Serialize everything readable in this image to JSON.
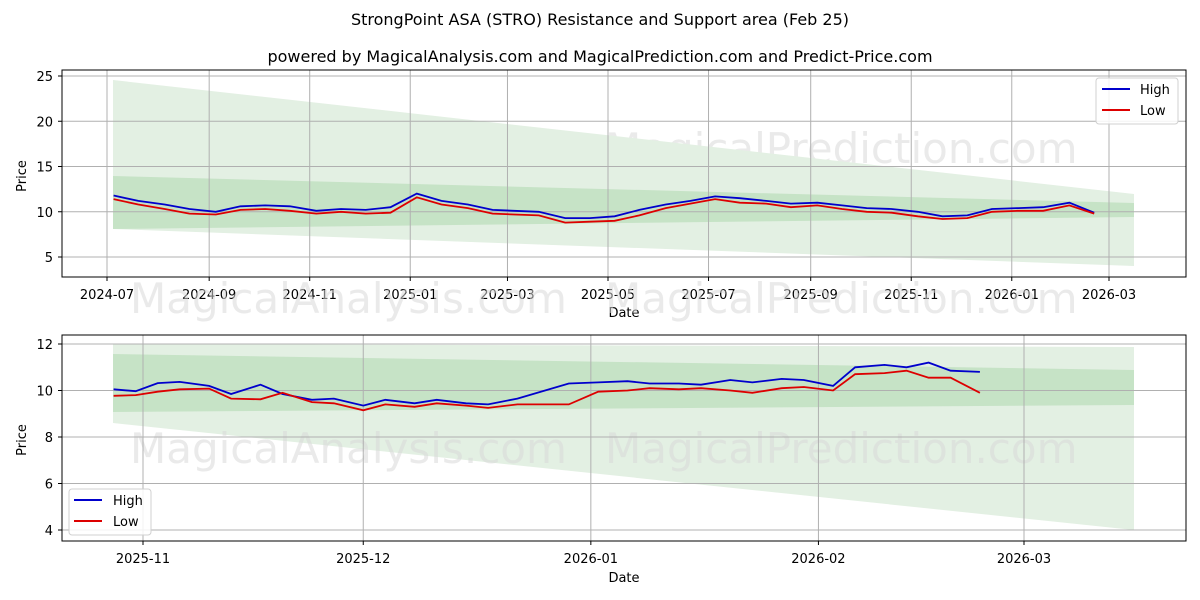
{
  "title": "StrongPoint ASA (STRO) Resistance and Support area (Feb 25)",
  "subtitle": "powered by MagicalAnalysis.com and MagicalPrediction.com and Predict-Price.com",
  "watermarks": [
    "MagicalAnalysis.com",
    "MagicalPrediction.com"
  ],
  "colors": {
    "high": "#0000cc",
    "low": "#dd0000",
    "band_light": "#e3f0e3",
    "band_dark": "#c6e3c6",
    "grid": "#b0b0b0"
  },
  "chart_data": [
    {
      "type": "line",
      "title": "StrongPoint ASA (STRO) Resistance and Support area (Feb 25)",
      "xlabel": "Date",
      "ylabel": "Price",
      "ylim": [
        3,
        25.5
      ],
      "yticks": [
        5,
        10,
        15,
        20,
        25
      ],
      "xticks": [
        "2024-07",
        "2024-09",
        "2024-11",
        "2025-01",
        "2025-03",
        "2025-05",
        "2025-07",
        "2025-09",
        "2025-11",
        "2026-01",
        "2026-03"
      ],
      "grid": true,
      "legend": {
        "position": "upper right",
        "entries": [
          "High",
          "Low"
        ]
      },
      "x": [
        "2024-07-05",
        "2024-07-20",
        "2024-08-05",
        "2024-08-20",
        "2024-09-05",
        "2024-09-20",
        "2024-10-05",
        "2024-10-20",
        "2024-11-05",
        "2024-11-20",
        "2024-12-05",
        "2024-12-20",
        "2025-01-05",
        "2025-01-20",
        "2025-02-05",
        "2025-02-20",
        "2025-03-05",
        "2025-03-20",
        "2025-04-05",
        "2025-04-20",
        "2025-05-05",
        "2025-05-20",
        "2025-06-05",
        "2025-06-20",
        "2025-07-05",
        "2025-07-20",
        "2025-08-05",
        "2025-08-20",
        "2025-09-05",
        "2025-09-20",
        "2025-10-05",
        "2025-10-20",
        "2025-11-05",
        "2025-11-20",
        "2025-12-05",
        "2025-12-20",
        "2026-01-05",
        "2026-01-20",
        "2026-02-05",
        "2026-02-20"
      ],
      "series": [
        {
          "name": "High",
          "values": [
            11.8,
            11.2,
            10.8,
            10.3,
            10.0,
            10.6,
            10.7,
            10.6,
            10.1,
            10.3,
            10.2,
            10.5,
            12.0,
            11.2,
            10.8,
            10.2,
            10.1,
            10.0,
            9.3,
            9.3,
            9.5,
            10.2,
            10.8,
            11.2,
            11.7,
            11.5,
            11.2,
            10.9,
            11.0,
            10.7,
            10.4,
            10.3,
            10.0,
            9.5,
            9.6,
            10.3,
            10.4,
            10.5,
            11.0,
            9.9
          ]
        },
        {
          "name": "Low",
          "values": [
            11.4,
            10.8,
            10.3,
            9.8,
            9.7,
            10.2,
            10.3,
            10.1,
            9.8,
            10.0,
            9.8,
            9.9,
            11.6,
            10.8,
            10.4,
            9.8,
            9.7,
            9.6,
            8.8,
            8.9,
            9.0,
            9.6,
            10.4,
            10.9,
            11.4,
            11.0,
            10.9,
            10.5,
            10.7,
            10.3,
            10.0,
            9.9,
            9.5,
            9.2,
            9.3,
            10.0,
            10.1,
            10.1,
            10.7,
            9.8
          ]
        }
      ],
      "bands": {
        "outer_upper": {
          "start": 24.5,
          "end": 11.9
        },
        "outer_lower": {
          "start": 8.0,
          "end": 4.0
        },
        "inner_upper": {
          "start": 13.9,
          "end": 10.9
        },
        "inner_lower": {
          "start": 8.1,
          "end": 9.3
        },
        "x_range": [
          "2024-07-05",
          "2026-03-18"
        ]
      }
    },
    {
      "type": "line",
      "xlabel": "Date",
      "ylabel": "Price",
      "ylim": [
        3.5,
        12.4
      ],
      "yticks": [
        4,
        6,
        8,
        10,
        12
      ],
      "xticks": [
        "2025-11",
        "2025-12",
        "2026-01",
        "2026-02",
        "2026-03"
      ],
      "grid": true,
      "legend": {
        "position": "lower left",
        "entries": [
          "High",
          "Low"
        ]
      },
      "x": [
        "2025-10-28",
        "2025-10-31",
        "2025-11-03",
        "2025-11-06",
        "2025-11-10",
        "2025-11-13",
        "2025-11-17",
        "2025-11-20",
        "2025-11-24",
        "2025-11-27",
        "2025-12-01",
        "2025-12-04",
        "2025-12-08",
        "2025-12-11",
        "2025-12-15",
        "2025-12-18",
        "2025-12-22",
        "2025-12-29",
        "2026-01-02",
        "2026-01-06",
        "2026-01-09",
        "2026-01-13",
        "2026-01-16",
        "2026-01-20",
        "2026-01-23",
        "2026-01-27",
        "2026-01-30",
        "2026-02-03",
        "2026-02-06",
        "2026-02-10",
        "2026-02-13",
        "2026-02-16",
        "2026-02-19",
        "2026-02-23"
      ],
      "series": [
        {
          "name": "High",
          "values": [
            10.05,
            9.97,
            10.32,
            10.37,
            10.2,
            9.85,
            10.25,
            9.85,
            9.6,
            9.65,
            9.35,
            9.6,
            9.45,
            9.6,
            9.45,
            9.4,
            9.65,
            10.3,
            10.35,
            10.4,
            10.3,
            10.3,
            10.25,
            10.45,
            10.35,
            10.5,
            10.45,
            10.2,
            11.0,
            11.1,
            11.0,
            11.2,
            10.85,
            10.8
          ]
        },
        {
          "name": "Low",
          "values": [
            9.77,
            9.8,
            9.95,
            10.05,
            10.08,
            9.65,
            9.62,
            9.9,
            9.5,
            9.45,
            9.15,
            9.4,
            9.3,
            9.45,
            9.35,
            9.25,
            9.4,
            9.4,
            9.95,
            10.0,
            10.1,
            10.05,
            10.1,
            10.0,
            9.9,
            10.1,
            10.15,
            10.0,
            10.7,
            10.75,
            10.85,
            10.55,
            10.55,
            9.9
          ]
        }
      ],
      "bands": {
        "outer_upper": {
          "start": 12.0,
          "end": 11.9
        },
        "outer_lower": {
          "start": 8.55,
          "end": 3.95
        },
        "inner_upper": {
          "start": 11.55,
          "end": 10.85
        },
        "inner_lower": {
          "start": 9.1,
          "end": 9.4
        },
        "x_range": [
          "2025-10-28",
          "2026-03-18"
        ]
      }
    }
  ]
}
